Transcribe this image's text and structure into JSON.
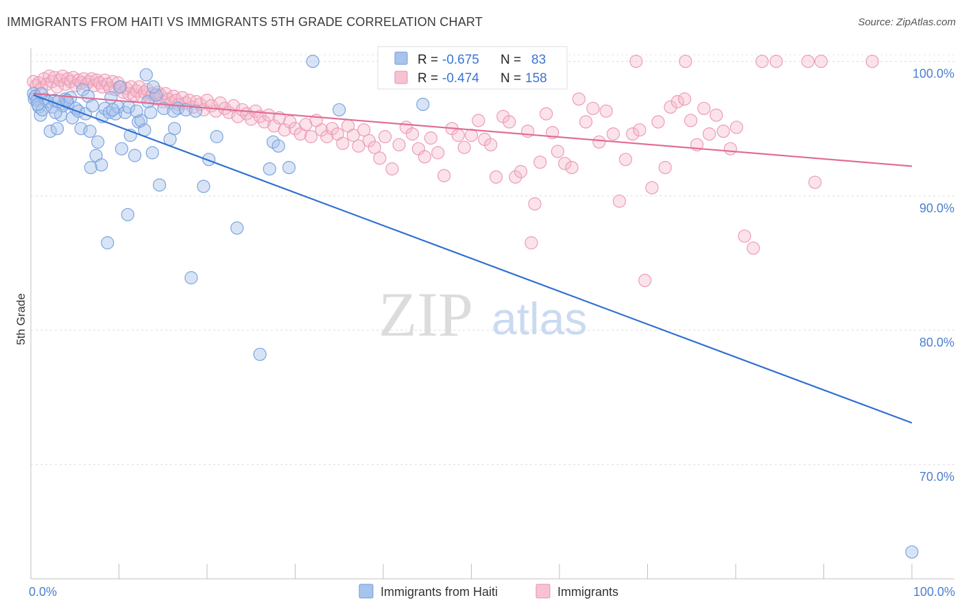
{
  "header": {
    "title": "IMMIGRANTS FROM HAITI VS IMMIGRANTS 5TH GRADE CORRELATION CHART",
    "source": "Source: ZipAtlas.com"
  },
  "watermark": {
    "zip": "ZIP",
    "atlas": "atlas"
  },
  "chart_data": {
    "type": "scatter",
    "title": "IMMIGRANTS FROM HAITI VS IMMIGRANTS 5TH GRADE CORRELATION CHART",
    "xlabel": "",
    "ylabel": "5th Grade",
    "xlim": [
      0,
      100
    ],
    "ylim": [
      61.5,
      101.0
    ],
    "x_tick_labels": [
      "0.0%",
      "100.0%"
    ],
    "y_ticks": [
      70,
      80,
      90,
      100
    ],
    "y_tick_labels": [
      "70.0%",
      "80.0%",
      "90.0%",
      "100.0%"
    ],
    "grid": true,
    "legend_position": "top-center",
    "series": [
      {
        "name": "Immigrants from Haiti",
        "color": "#a8c4ec",
        "line_color": "#2e6fd2",
        "R": "-0.675",
        "N": "83",
        "trend": [
          [
            0.3,
            97.5
          ],
          [
            100,
            73.1
          ]
        ],
        "points": [
          [
            0.3,
            97.6
          ],
          [
            0.4,
            97.2
          ],
          [
            0.5,
            97.4
          ],
          [
            0.7,
            97.1
          ],
          [
            0.9,
            96.6
          ],
          [
            1.1,
            96.0
          ],
          [
            1.3,
            96.4
          ],
          [
            1.6,
            97.2
          ],
          [
            1.9,
            97.0
          ],
          [
            2.2,
            94.8
          ],
          [
            2.4,
            96.6
          ],
          [
            2.7,
            97.1
          ],
          [
            3.0,
            95.0
          ],
          [
            3.4,
            96.0
          ],
          [
            3.6,
            96.7
          ],
          [
            3.9,
            97.2
          ],
          [
            4.2,
            96.9
          ],
          [
            4.5,
            97.3
          ],
          [
            4.7,
            95.8
          ],
          [
            5.1,
            96.5
          ],
          [
            5.4,
            96.3
          ],
          [
            5.7,
            95.0
          ],
          [
            5.9,
            97.9
          ],
          [
            6.2,
            96.1
          ],
          [
            6.5,
            97.4
          ],
          [
            6.7,
            94.8
          ],
          [
            7.0,
            96.7
          ],
          [
            7.4,
            93.0
          ],
          [
            7.6,
            94.0
          ],
          [
            8.0,
            92.3
          ],
          [
            8.1,
            95.9
          ],
          [
            8.4,
            96.5
          ],
          [
            8.9,
            96.2
          ],
          [
            9.1,
            97.3
          ],
          [
            9.6,
            96.1
          ],
          [
            9.9,
            96.6
          ],
          [
            10.3,
            93.5
          ],
          [
            10.7,
            96.2
          ],
          [
            11.1,
            96.6
          ],
          [
            11.0,
            88.6
          ],
          [
            11.3,
            94.5
          ],
          [
            11.8,
            93.0
          ],
          [
            12.2,
            95.5
          ],
          [
            12.5,
            95.6
          ],
          [
            12.9,
            94.9
          ],
          [
            13.3,
            97.0
          ],
          [
            13.6,
            96.2
          ],
          [
            13.8,
            93.2
          ],
          [
            14.2,
            97.5
          ],
          [
            14.6,
            90.8
          ],
          [
            15.1,
            96.5
          ],
          [
            15.8,
            94.2
          ],
          [
            16.3,
            95.0
          ],
          [
            16.7,
            96.5
          ],
          [
            17.6,
            96.4
          ],
          [
            18.2,
            83.9
          ],
          [
            18.7,
            96.3
          ],
          [
            19.6,
            90.7
          ],
          [
            20.2,
            92.7
          ],
          [
            21.1,
            94.4
          ],
          [
            13.1,
            99.0
          ],
          [
            8.7,
            86.5
          ],
          [
            23.4,
            87.6
          ],
          [
            26.0,
            78.2
          ],
          [
            27.1,
            92.0
          ],
          [
            27.5,
            94.0
          ],
          [
            28.1,
            93.7
          ],
          [
            29.3,
            92.1
          ],
          [
            32.0,
            100.0
          ],
          [
            35.0,
            96.4
          ],
          [
            44.5,
            96.8
          ],
          [
            100.0,
            63.5
          ],
          [
            1.2,
            97.6
          ],
          [
            2.8,
            96.2
          ],
          [
            4.1,
            97.1
          ],
          [
            6.8,
            92.1
          ],
          [
            9.3,
            96.4
          ],
          [
            12.0,
            96.3
          ],
          [
            13.9,
            98.1
          ],
          [
            16.2,
            96.3
          ],
          [
            10.1,
            98.1
          ],
          [
            3.1,
            97.0
          ],
          [
            0.8,
            96.8
          ]
        ]
      },
      {
        "name": "Immigrants",
        "color": "#f4b8cb",
        "line_color": "#e06b93",
        "R": "-0.474",
        "N": "158",
        "trend": [
          [
            0.3,
            97.6
          ],
          [
            100,
            92.2
          ]
        ],
        "points": [
          [
            0.3,
            98.5
          ],
          [
            0.6,
            98.2
          ],
          [
            0.9,
            98.4
          ],
          [
            1.2,
            98.0
          ],
          [
            1.5,
            98.7
          ],
          [
            1.8,
            98.3
          ],
          [
            2.1,
            98.9
          ],
          [
            2.4,
            98.5
          ],
          [
            2.7,
            98.8
          ],
          [
            3.0,
            98.1
          ],
          [
            3.3,
            98.6
          ],
          [
            3.6,
            98.9
          ],
          [
            3.9,
            98.3
          ],
          [
            4.2,
            98.7
          ],
          [
            4.5,
            98.5
          ],
          [
            4.8,
            98.8
          ],
          [
            5.1,
            98.2
          ],
          [
            5.4,
            98.6
          ],
          [
            5.7,
            98.4
          ],
          [
            6.0,
            98.7
          ],
          [
            6.3,
            98.3
          ],
          [
            6.6,
            98.5
          ],
          [
            6.9,
            98.7
          ],
          [
            7.2,
            98.2
          ],
          [
            7.5,
            98.6
          ],
          [
            7.8,
            98.4
          ],
          [
            8.1,
            98.1
          ],
          [
            8.4,
            98.6
          ],
          [
            8.7,
            98.3
          ],
          [
            9.0,
            98.0
          ],
          [
            9.3,
            98.5
          ],
          [
            9.6,
            97.9
          ],
          [
            9.9,
            98.4
          ],
          [
            10.2,
            98.1
          ],
          [
            10.5,
            97.7
          ],
          [
            10.8,
            98.0
          ],
          [
            11.1,
            97.6
          ],
          [
            11.4,
            98.1
          ],
          [
            11.7,
            97.5
          ],
          [
            12.0,
            97.8
          ],
          [
            12.3,
            98.1
          ],
          [
            12.6,
            97.4
          ],
          [
            12.9,
            97.7
          ],
          [
            13.2,
            97.9
          ],
          [
            13.5,
            97.3
          ],
          [
            13.8,
            97.6
          ],
          [
            14.1,
            97.2
          ],
          [
            14.4,
            97.7
          ],
          [
            14.7,
            97.5
          ],
          [
            15.0,
            97.0
          ],
          [
            15.3,
            97.6
          ],
          [
            15.6,
            97.2
          ],
          [
            15.9,
            96.9
          ],
          [
            16.2,
            97.4
          ],
          [
            16.5,
            97.1
          ],
          [
            16.8,
            96.8
          ],
          [
            17.2,
            97.3
          ],
          [
            17.6,
            96.9
          ],
          [
            18.0,
            97.1
          ],
          [
            18.4,
            96.6
          ],
          [
            18.8,
            97.0
          ],
          [
            19.2,
            96.8
          ],
          [
            19.6,
            96.4
          ],
          [
            20.0,
            97.1
          ],
          [
            20.5,
            96.7
          ],
          [
            21.0,
            96.3
          ],
          [
            21.5,
            96.9
          ],
          [
            22.0,
            96.5
          ],
          [
            22.5,
            96.2
          ],
          [
            23.0,
            96.7
          ],
          [
            23.5,
            95.9
          ],
          [
            24.0,
            96.4
          ],
          [
            24.5,
            96.1
          ],
          [
            25.0,
            95.7
          ],
          [
            25.5,
            96.3
          ],
          [
            26.0,
            95.9
          ],
          [
            26.5,
            95.5
          ],
          [
            27.0,
            96.0
          ],
          [
            27.6,
            95.2
          ],
          [
            28.2,
            95.8
          ],
          [
            28.8,
            94.9
          ],
          [
            29.4,
            95.5
          ],
          [
            30.0,
            95.0
          ],
          [
            30.6,
            94.6
          ],
          [
            31.2,
            95.3
          ],
          [
            31.8,
            94.4
          ],
          [
            32.4,
            95.6
          ],
          [
            33.0,
            94.9
          ],
          [
            33.6,
            94.4
          ],
          [
            34.2,
            95.0
          ],
          [
            34.8,
            94.6
          ],
          [
            35.4,
            93.9
          ],
          [
            36.0,
            95.2
          ],
          [
            36.6,
            94.5
          ],
          [
            37.2,
            93.7
          ],
          [
            37.8,
            94.9
          ],
          [
            38.4,
            94.1
          ],
          [
            39.0,
            93.6
          ],
          [
            39.6,
            92.8
          ],
          [
            40.2,
            94.4
          ],
          [
            41.0,
            92.0
          ],
          [
            41.8,
            93.8
          ],
          [
            42.6,
            95.1
          ],
          [
            43.3,
            94.6
          ],
          [
            44.0,
            93.5
          ],
          [
            44.7,
            92.9
          ],
          [
            45.4,
            94.3
          ],
          [
            46.2,
            93.2
          ],
          [
            46.9,
            91.5
          ],
          [
            47.8,
            95.0
          ],
          [
            48.5,
            94.5
          ],
          [
            49.2,
            93.6
          ],
          [
            50.0,
            94.5
          ],
          [
            50.8,
            95.6
          ],
          [
            51.5,
            94.2
          ],
          [
            52.2,
            93.8
          ],
          [
            52.8,
            91.4
          ],
          [
            53.6,
            95.9
          ],
          [
            54.3,
            95.5
          ],
          [
            55.0,
            91.4
          ],
          [
            55.6,
            91.8
          ],
          [
            56.4,
            94.8
          ],
          [
            57.2,
            89.4
          ],
          [
            57.8,
            92.5
          ],
          [
            58.5,
            96.1
          ],
          [
            59.2,
            94.7
          ],
          [
            59.8,
            93.3
          ],
          [
            60.6,
            92.4
          ],
          [
            61.4,
            92.1
          ],
          [
            62.2,
            97.2
          ],
          [
            63.0,
            95.5
          ],
          [
            63.8,
            96.5
          ],
          [
            64.5,
            94.0
          ],
          [
            65.3,
            96.3
          ],
          [
            66.1,
            94.6
          ],
          [
            66.8,
            89.6
          ],
          [
            67.5,
            92.7
          ],
          [
            68.3,
            94.6
          ],
          [
            69.1,
            94.9
          ],
          [
            69.7,
            83.7
          ],
          [
            70.5,
            90.6
          ],
          [
            71.2,
            95.5
          ],
          [
            72.0,
            92.1
          ],
          [
            72.6,
            96.6
          ],
          [
            73.4,
            97.0
          ],
          [
            74.2,
            97.2
          ],
          [
            74.9,
            95.6
          ],
          [
            75.6,
            93.8
          ],
          [
            76.4,
            96.5
          ],
          [
            77.0,
            94.6
          ],
          [
            77.8,
            96.0
          ],
          [
            78.6,
            94.8
          ],
          [
            79.4,
            93.5
          ],
          [
            80.1,
            95.1
          ],
          [
            81.0,
            87.0
          ],
          [
            82.0,
            86.1
          ],
          [
            83.0,
            100.0
          ],
          [
            84.6,
            100.0
          ],
          [
            88.2,
            100.0
          ],
          [
            89.7,
            100.0
          ],
          [
            95.5,
            100.0
          ],
          [
            89.0,
            91.0
          ],
          [
            74.3,
            100.0
          ],
          [
            68.7,
            100.0
          ],
          [
            56.8,
            86.5
          ],
          [
            57.0,
            100.0
          ]
        ]
      }
    ]
  }
}
